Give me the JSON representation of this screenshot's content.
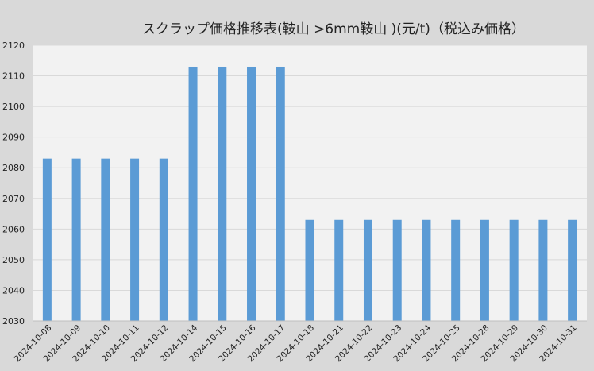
{
  "chart_data": {
    "type": "bar",
    "title": "スクラップ価格推移表(鞍山 >6mm鞍山 )(元/t)（税込み価格）",
    "xlabel": "",
    "ylabel": "",
    "ylim": [
      2030,
      2120
    ],
    "yticks": [
      2030,
      2040,
      2050,
      2060,
      2070,
      2080,
      2090,
      2100,
      2110,
      2120
    ],
    "grid": true,
    "bar_color": "#5b9bd5",
    "categories": [
      "2024-10-08",
      "2024-10-09",
      "2024-10-10",
      "2024-10-11",
      "2024-10-12",
      "2024-10-14",
      "2024-10-15",
      "2024-10-16",
      "2024-10-17",
      "2024-10-18",
      "2024-10-21",
      "2024-10-22",
      "2024-10-23",
      "2024-10-24",
      "2024-10-25",
      "2024-10-28",
      "2024-10-29",
      "2024-10-30",
      "2024-10-31"
    ],
    "values": [
      2083,
      2083,
      2083,
      2083,
      2083,
      2113,
      2113,
      2113,
      2113,
      2063,
      2063,
      2063,
      2063,
      2063,
      2063,
      2063,
      2063,
      2063,
      2063
    ]
  }
}
